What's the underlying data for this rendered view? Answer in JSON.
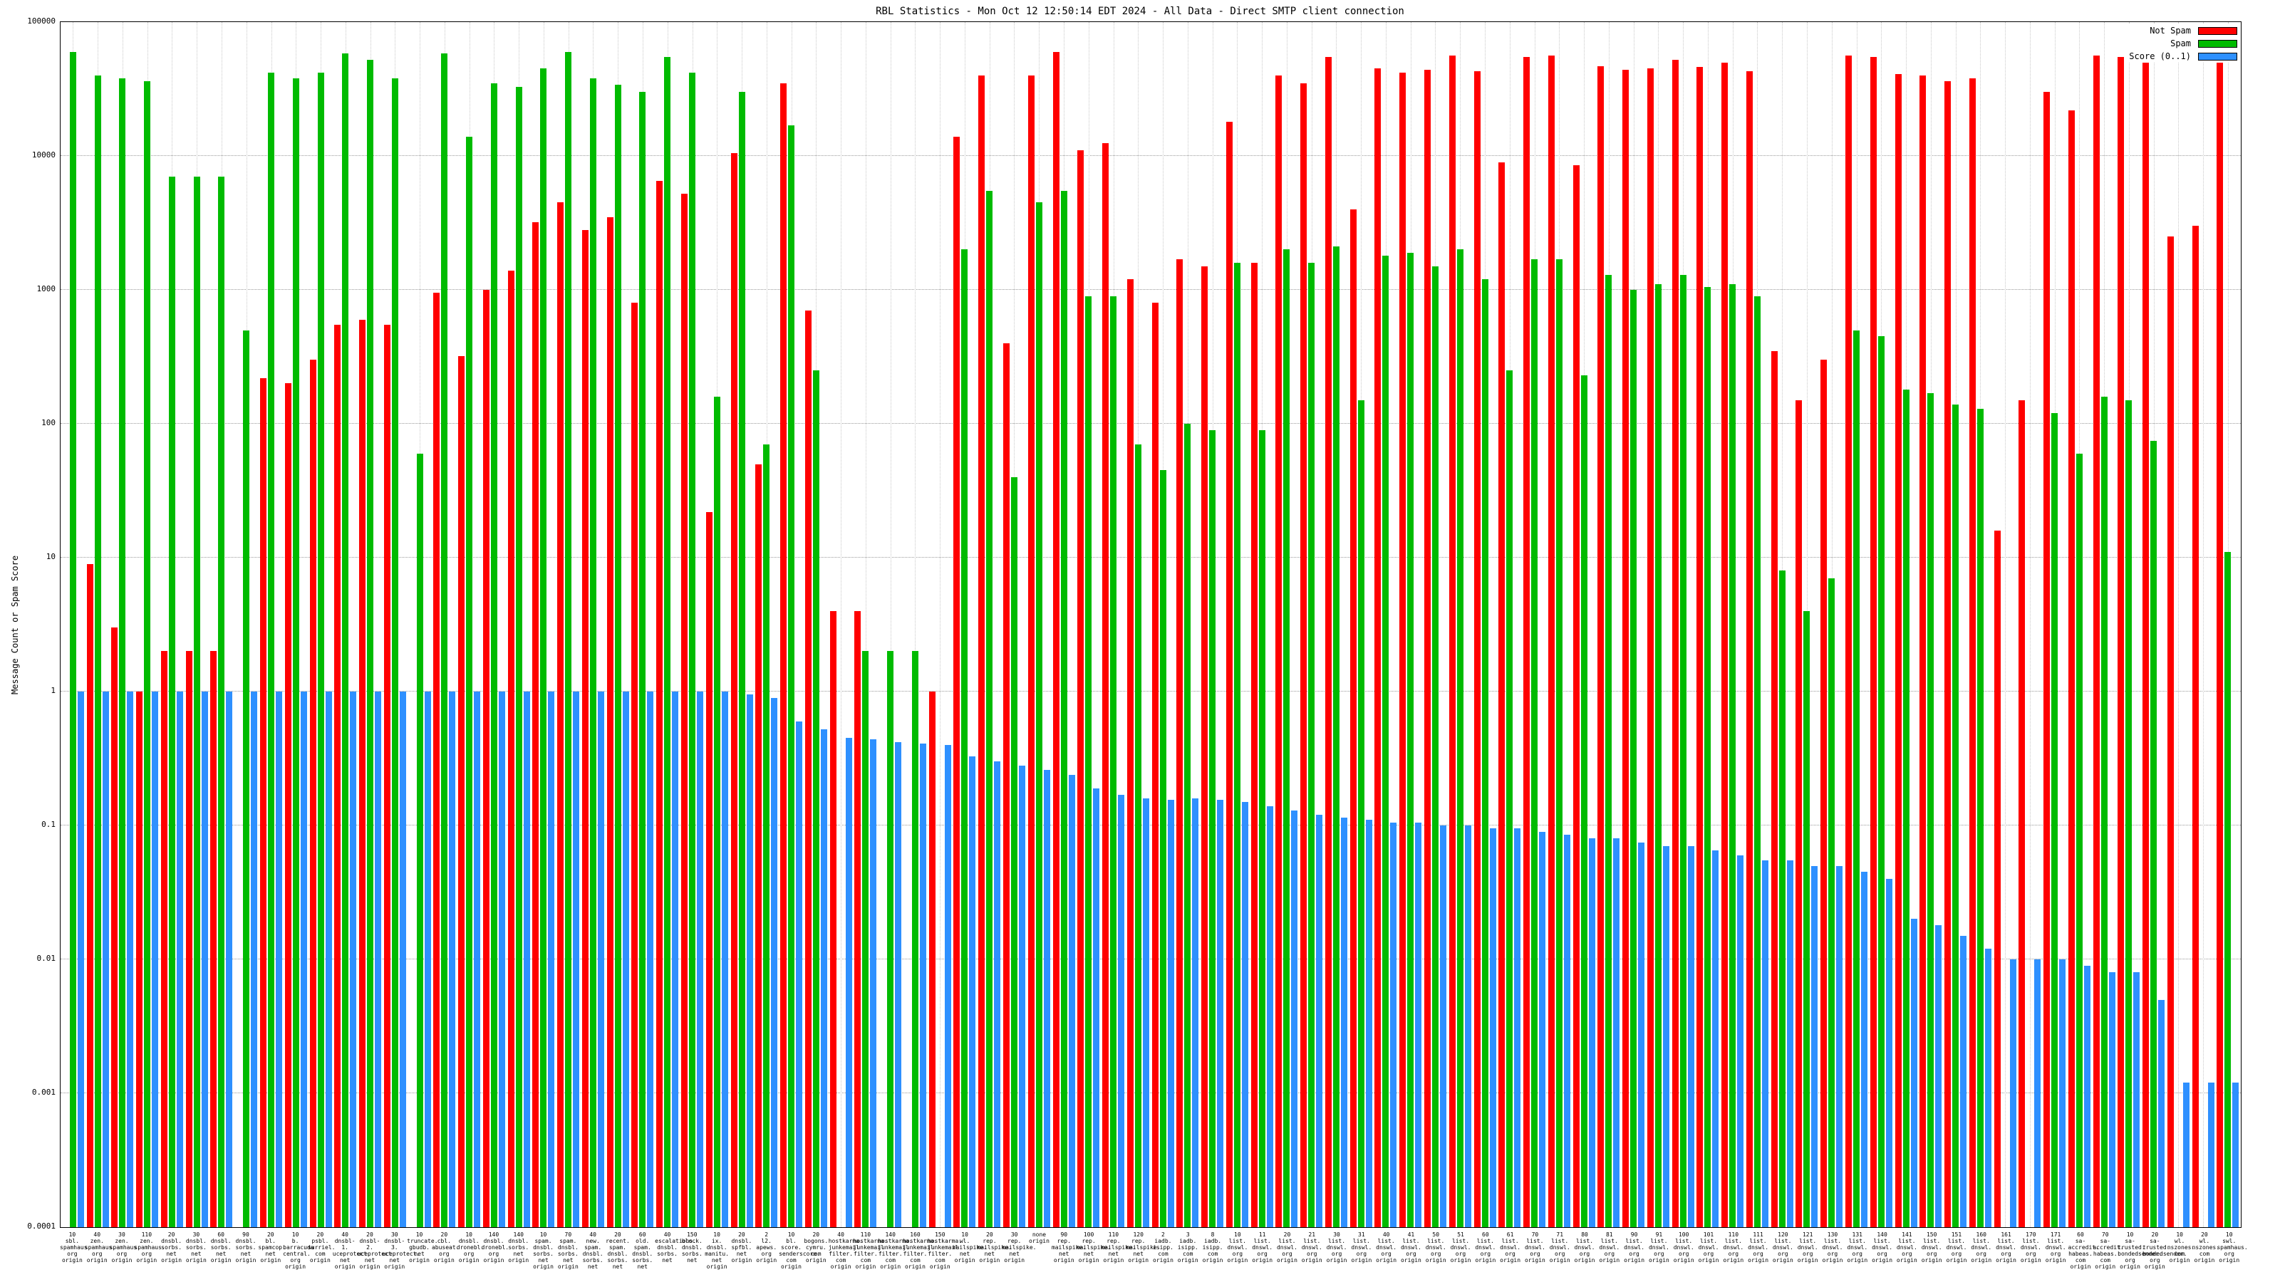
{
  "page": {
    "title": "RBL Statistics - Mon Oct 12 12:50:14 EDT 2024 - All Data - Direct SMTP client connection"
  },
  "chart_data": {
    "type": "bar",
    "title": "RBL Statistics - Mon Oct 12 12:50:14 EDT 2024 - All Data - Direct SMTP client connection",
    "xlabel": "",
    "ylabel": "Message Count or Spam Score",
    "yscale": "log",
    "ylim": [
      0.0001,
      100000
    ],
    "grid": true,
    "legend_position": "top-right",
    "yticks": [
      "0.0001",
      "0.001",
      "0.01",
      "0.1",
      "1",
      "10",
      "100",
      "1000",
      "10000",
      "100000"
    ],
    "series_colors": {
      "not_spam": "#ff0000",
      "spam": "#00bb00",
      "score": "#2e90ff"
    },
    "legend": [
      {
        "name": "Not Spam",
        "color": "#ff0000"
      },
      {
        "name": "Spam",
        "color": "#00bb00"
      },
      {
        "name": "Score (0..1)",
        "color": "#2e90ff"
      }
    ],
    "groups": [
      {
        "label": "10\nsbl.\nspamhaus.\norg\norigin",
        "not_spam": 0,
        "spam": 60000,
        "score": 1
      },
      {
        "label": "40\nzen.\nspamhaus.\norg\norigin",
        "not_spam": 9,
        "spam": 40000,
        "score": 1
      },
      {
        "label": "30\nzen.\nspamhaus.\norg\norigin",
        "not_spam": 3,
        "spam": 38000,
        "score": 1
      },
      {
        "label": "110\nzen.\nspamhaus.\norg\norigin",
        "not_spam": 1,
        "spam": 36000,
        "score": 1
      },
      {
        "label": "20\ndnsbl.\nsorbs.\nnet\norigin",
        "not_spam": 2,
        "spam": 7000,
        "score": 1
      },
      {
        "label": "30\ndnsbl.\nsorbs.\nnet\norigin",
        "not_spam": 2,
        "spam": 7000,
        "score": 1
      },
      {
        "label": "60\ndnsbl.\nsorbs.\nnet\norigin",
        "not_spam": 2,
        "spam": 7000,
        "score": 1
      },
      {
        "label": "90\ndnsbl.\nsorbs.\nnet\norigin",
        "not_spam": 0,
        "spam": 500,
        "score": 1
      },
      {
        "label": "20\nbl.\nspamcop.\nnet\norigin",
        "not_spam": 220,
        "spam": 42000,
        "score": 1
      },
      {
        "label": "10\nb.\nbarracuda\ncentral.\norg\norigin",
        "not_spam": 200,
        "spam": 38000,
        "score": 1
      },
      {
        "label": "20\npsbl.\nsurriel.\ncom\norigin",
        "not_spam": 300,
        "spam": 42000,
        "score": 1
      },
      {
        "label": "40\ndnsbl-1.\nuceprotect.\nnet\norigin",
        "not_spam": 550,
        "spam": 58000,
        "score": 1
      },
      {
        "label": "20\ndnsbl-2.\nuceprotect.\nnet\norigin",
        "not_spam": 600,
        "spam": 52000,
        "score": 1
      },
      {
        "label": "30\ndnsbl-3.\nuceprotect.\nnet\norigin",
        "not_spam": 550,
        "spam": 38000,
        "score": 1
      },
      {
        "label": "10\ntruncate.\ngbudb.\nnet\norigin",
        "not_spam": 0,
        "spam": 60,
        "score": 1
      },
      {
        "label": "20\ncbl.\nabuseat.\norg\norigin",
        "not_spam": 950,
        "spam": 58000,
        "score": 1
      },
      {
        "label": "10\ndnsbl.\ndronebl.\norg\norigin",
        "not_spam": 320,
        "spam": 14000,
        "score": 1
      },
      {
        "label": "140\ndnsbl.\ndronebl.\norg\norigin",
        "not_spam": 1000,
        "spam": 35000,
        "score": 1
      },
      {
        "label": "140\ndnsbl.\nsorbs.\nnet\norigin",
        "not_spam": 1400,
        "spam": 33000,
        "score": 1
      },
      {
        "label": "10\nspam.\ndnsbl.\nsorbs.\nnet\norigin",
        "not_spam": 3200,
        "spam": 45000,
        "score": 1
      },
      {
        "label": "70\nspam.\ndnsbl.\nsorbs.\nnet\norigin",
        "not_spam": 4500,
        "spam": 60000,
        "score": 1
      },
      {
        "label": "40\nnew.\nspam.\ndnsbl.\nsorbs.\nnet",
        "not_spam": 2800,
        "spam": 38000,
        "score": 1
      },
      {
        "label": "20\nrecent.\nspam.\ndnsbl.\nsorbs.\nnet",
        "not_spam": 3500,
        "spam": 34000,
        "score": 1
      },
      {
        "label": "60\nold.\nspam.\ndnsbl.\nsorbs.\nnet",
        "not_spam": 800,
        "spam": 30000,
        "score": 1
      },
      {
        "label": "40\nescalations.\ndnsbl.\nsorbs.\nnet",
        "not_spam": 6500,
        "spam": 55000,
        "score": 1
      },
      {
        "label": "150\nblock.\ndnsbl.\nsorbs.\nnet",
        "not_spam": 5200,
        "spam": 42000,
        "score": 1
      },
      {
        "label": "10\nix.\ndnsbl.\nmanitu.\nnet\norigin",
        "not_spam": 22,
        "spam": 160,
        "score": 1
      },
      {
        "label": "20\ndnsbl.\nspfbl.\nnet\norigin",
        "not_spam": 10500,
        "spam": 30000,
        "score": 0.95
      },
      {
        "label": "2\nl2.\napews.\norg\norigin",
        "not_spam": 50,
        "spam": 70,
        "score": 0.9
      },
      {
        "label": "10\nbl.\nscore.\nsenderscore.\ncom\norigin",
        "not_spam": 35000,
        "spam": 17000,
        "score": 0.6
      },
      {
        "label": "20\nbogons.\ncymru.\ncom\norigin",
        "not_spam": 700,
        "spam": 250,
        "score": 0.52
      },
      {
        "label": "40\nhostkarma.\njunkemail\nfilter.\ncom\norigin",
        "not_spam": 4,
        "spam": 0,
        "score": 0.45
      },
      {
        "label": "110\nhostkarma.\njunkemail\nfilter.\ncom\norigin",
        "not_spam": 4,
        "spam": 2,
        "score": 0.44
      },
      {
        "label": "140\nhostkarma.\njunkemail\nfilter.\ncom\norigin",
        "not_spam": 0,
        "spam": 2,
        "score": 0.42
      },
      {
        "label": "160\nhostkarma.\njunkemail\nfilter.\ncom\norigin",
        "not_spam": 0,
        "spam": 2,
        "score": 0.41
      },
      {
        "label": "150\nhostkarma.\njunkemail\nfilter.\ncom\norigin",
        "not_spam": 1,
        "spam": 0,
        "score": 0.4
      },
      {
        "label": "10\nwl.\nmailspike.\nnet\norigin",
        "not_spam": 14000,
        "spam": 2000,
        "score": 0.33
      },
      {
        "label": "20\nrep.\nmailspike.\nnet\norigin",
        "not_spam": 40000,
        "spam": 5500,
        "score": 0.3
      },
      {
        "label": "30\nrep.\nmailspike.\nnet\norigin",
        "not_spam": 400,
        "spam": 40,
        "score": 0.28
      },
      {
        "label": "none\norigin",
        "not_spam": 40000,
        "spam": 4500,
        "score": 0.26
      },
      {
        "label": "90\nrep.\nmailspike.\nnet\norigin",
        "not_spam": 60000,
        "spam": 5500,
        "score": 0.24
      },
      {
        "label": "100\nrep.\nmailspike.\nnet\norigin",
        "not_spam": 11000,
        "spam": 900,
        "score": 0.19
      },
      {
        "label": "110\nrep.\nmailspike.\nnet\norigin",
        "not_spam": 12500,
        "spam": 900,
        "score": 0.17
      },
      {
        "label": "120\nrep.\nmailspike.\nnet\norigin",
        "not_spam": 1200,
        "spam": 70,
        "score": 0.16
      },
      {
        "label": "2\niadb.\nisipp.\ncom\norigin",
        "not_spam": 800,
        "spam": 45,
        "score": 0.155
      },
      {
        "label": "3\niadb.\nisipp.\ncom\norigin",
        "not_spam": 1700,
        "spam": 100,
        "score": 0.16
      },
      {
        "label": "8\niadb.\nisipp.\ncom\norigin",
        "not_spam": 1500,
        "spam": 90,
        "score": 0.155
      },
      {
        "label": "10\nlist.\ndnswl.\norg\norigin",
        "not_spam": 18000,
        "spam": 1600,
        "score": 0.15
      },
      {
        "label": "11\nlist.\ndnswl.\norg\norigin",
        "not_spam": 1600,
        "spam": 90,
        "score": 0.14
      },
      {
        "label": "20\nlist.\ndnswl.\norg\norigin",
        "not_spam": 40000,
        "spam": 2000,
        "score": 0.13
      },
      {
        "label": "21\nlist.\ndnswl.\norg\norigin",
        "not_spam": 35000,
        "spam": 1600,
        "score": 0.12
      },
      {
        "label": "30\nlist.\ndnswl.\norg\norigin",
        "not_spam": 55000,
        "spam": 2100,
        "score": 0.115
      },
      {
        "label": "31\nlist.\ndnswl.\norg\norigin",
        "not_spam": 4000,
        "spam": 150,
        "score": 0.11
      },
      {
        "label": "40\nlist.\ndnswl.\norg\norigin",
        "not_spam": 45000,
        "spam": 1800,
        "score": 0.105
      },
      {
        "label": "41\nlist.\ndnswl.\norg\norigin",
        "not_spam": 42000,
        "spam": 1900,
        "score": 0.105
      },
      {
        "label": "50\nlist.\ndnswl.\norg\norigin",
        "not_spam": 44000,
        "spam": 1500,
        "score": 0.1
      },
      {
        "label": "51\nlist.\ndnswl.\norg\norigin",
        "not_spam": 56000,
        "spam": 2000,
        "score": 0.1
      },
      {
        "label": "60\nlist.\ndnswl.\norg\norigin",
        "not_spam": 43000,
        "spam": 1200,
        "score": 0.095
      },
      {
        "label": "61\nlist.\ndnswl.\norg\norigin",
        "not_spam": 9000,
        "spam": 250,
        "score": 0.095
      },
      {
        "label": "70\nlist.\ndnswl.\norg\norigin",
        "not_spam": 55000,
        "spam": 1700,
        "score": 0.09
      },
      {
        "label": "71\nlist.\ndnswl.\norg\norigin",
        "not_spam": 56000,
        "spam": 1700,
        "score": 0.085
      },
      {
        "label": "80\nlist.\ndnswl.\norg\norigin",
        "not_spam": 8500,
        "spam": 230,
        "score": 0.08
      },
      {
        "label": "81\nlist.\ndnswl.\norg\norigin",
        "not_spam": 47000,
        "spam": 1300,
        "score": 0.08
      },
      {
        "label": "90\nlist.\ndnswl.\norg\norigin",
        "not_spam": 44000,
        "spam": 1000,
        "score": 0.075
      },
      {
        "label": "91\nlist.\ndnswl.\norg\norigin",
        "not_spam": 45000,
        "spam": 1100,
        "score": 0.07
      },
      {
        "label": "100\nlist.\ndnswl.\norg\norigin",
        "not_spam": 52000,
        "spam": 1300,
        "score": 0.07
      },
      {
        "label": "101\nlist.\ndnswl.\norg\norigin",
        "not_spam": 46000,
        "spam": 1050,
        "score": 0.065
      },
      {
        "label": "110\nlist.\ndnswl.\norg\norigin",
        "not_spam": 50000,
        "spam": 1100,
        "score": 0.06
      },
      {
        "label": "111\nlist.\ndnswl.\norg\norigin",
        "not_spam": 43000,
        "spam": 900,
        "score": 0.055
      },
      {
        "label": "120\nlist.\ndnswl.\norg\norigin",
        "not_spam": 350,
        "spam": 8,
        "score": 0.055
      },
      {
        "label": "121\nlist.\ndnswl.\norg\norigin",
        "not_spam": 150,
        "spam": 4,
        "score": 0.05
      },
      {
        "label": "130\nlist.\ndnswl.\norg\norigin",
        "not_spam": 300,
        "spam": 7,
        "score": 0.05
      },
      {
        "label": "131\nlist.\ndnswl.\norg\norigin",
        "not_spam": 56000,
        "spam": 500,
        "score": 0.045
      },
      {
        "label": "140\nlist.\ndnswl.\norg\norigin",
        "not_spam": 55000,
        "spam": 450,
        "score": 0.04
      },
      {
        "label": "141\nlist.\ndnswl.\norg\norigin",
        "not_spam": 41000,
        "spam": 180,
        "score": 0.02
      },
      {
        "label": "150\nlist.\ndnswl.\norg\norigin",
        "not_spam": 40000,
        "spam": 170,
        "score": 0.018
      },
      {
        "label": "151\nlist.\ndnswl.\norg\norigin",
        "not_spam": 36000,
        "spam": 140,
        "score": 0.015
      },
      {
        "label": "160\nlist.\ndnswl.\norg\norigin",
        "not_spam": 38000,
        "spam": 130,
        "score": 0.012
      },
      {
        "label": "161\nlist.\ndnswl.\norg\norigin",
        "not_spam": 16,
        "spam": 0,
        "score": 0.01
      },
      {
        "label": "170\nlist.\ndnswl.\norg\norigin",
        "not_spam": 150,
        "spam": 0,
        "score": 0.01
      },
      {
        "label": "171\nlist.\ndnswl.\norg\norigin",
        "not_spam": 30000,
        "spam": 120,
        "score": 0.01
      },
      {
        "label": "60\nsa-accredit.\nhabeas.\ncom\norigin",
        "not_spam": 22000,
        "spam": 60,
        "score": 0.009
      },
      {
        "label": "70\nsa-accredit.\nhabeas.\ncom\norigin",
        "not_spam": 56000,
        "spam": 160,
        "score": 0.008
      },
      {
        "label": "10\nsa-trusted.\nbondedsender.\norg\norigin",
        "not_spam": 55000,
        "spam": 150,
        "score": 0.008
      },
      {
        "label": "20\nsa-trusted.\nbondedsender.\norg\norigin",
        "not_spam": 55000,
        "spam": 75,
        "score": 0.005
      },
      {
        "label": "10\nwl.\nnszones.\ncom\norigin",
        "not_spam": 2500,
        "spam": 0,
        "score": 0.0012
      },
      {
        "label": "20\nwl.\nnszones.\ncom\norigin",
        "not_spam": 3000,
        "spam": 0,
        "score": 0.0012
      },
      {
        "label": "10\nswl.\nspamhaus.\norg\norigin",
        "not_spam": 60000,
        "spam": 11,
        "score": 0.0012
      }
    ]
  }
}
